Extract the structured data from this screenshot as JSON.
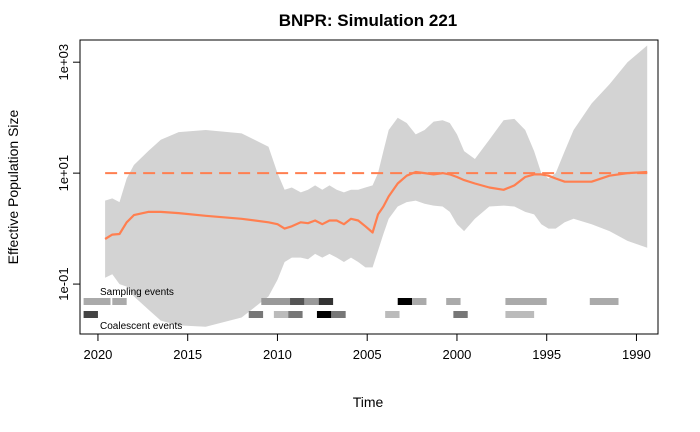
{
  "chart_data": {
    "type": "area",
    "title": "BNPR: Simulation 221",
    "xlabel": "Time",
    "ylabel": "Effective Population Size",
    "x_reversed": true,
    "y_scale": "log10",
    "xlim": [
      2021,
      1988.8
    ],
    "ylim_log10": [
      -1.9,
      3.4
    ],
    "x_ticks": [
      2020,
      2015,
      2010,
      2005,
      2000,
      1995,
      1990
    ],
    "y_ticks": [
      {
        "value": 0.1,
        "label": "1e-01"
      },
      {
        "value": 10,
        "label": "1e+01"
      },
      {
        "value": 1000,
        "label": "1e+03"
      }
    ],
    "reference_line": {
      "value": 10,
      "style": "dashed",
      "color": "#ff7f50"
    },
    "series": [
      {
        "kind": "median",
        "color": "#ff7f50",
        "x": [
          2019.6,
          2019.2,
          2018.8,
          2018.4,
          2018,
          2017.2,
          2016.5,
          2015.5,
          2014,
          2012,
          2010.5,
          2010,
          2009.6,
          2009.2,
          2008.7,
          2008.3,
          2007.9,
          2007.5,
          2007.1,
          2006.7,
          2006.3,
          2005.9,
          2005.5,
          2005.1,
          2004.7,
          2004.4,
          2004.1,
          2003.8,
          2003.3,
          2002.8,
          2002.3,
          2001.8,
          2001.3,
          2000.8,
          2000.4,
          2000,
          1999.6,
          1999,
          1998.2,
          1997.4,
          1996.8,
          1996.2,
          1995.7,
          1995.3,
          1994.9,
          1994.5,
          1994,
          1993.5,
          1992.5,
          1991.5,
          1990.5,
          1989.4
        ],
        "y": [
          0.65,
          0.78,
          0.8,
          1.3,
          1.75,
          2.0,
          2.0,
          1.9,
          1.7,
          1.5,
          1.3,
          1.2,
          1.0,
          1.1,
          1.3,
          1.25,
          1.4,
          1.2,
          1.4,
          1.4,
          1.2,
          1.5,
          1.4,
          1.1,
          0.85,
          1.8,
          2.5,
          3.8,
          6.5,
          9.0,
          10.5,
          10.0,
          9.5,
          10.0,
          9.5,
          8.5,
          7.5,
          6.5,
          5.5,
          5.0,
          6.0,
          8.5,
          9.5,
          9.5,
          9.0,
          8.0,
          7.0,
          7.0,
          7.0,
          9.0,
          10.0,
          10.5
        ]
      },
      {
        "kind": "credible-band-upper",
        "color": "#d3d3d3",
        "x": [
          2019.6,
          2019.2,
          2018.8,
          2018.4,
          2018,
          2017.2,
          2016.5,
          2015.5,
          2014,
          2012,
          2010.5,
          2010,
          2009.6,
          2009.2,
          2008.7,
          2008.3,
          2007.9,
          2007.5,
          2007.1,
          2006.7,
          2006.3,
          2005.9,
          2005.5,
          2005.1,
          2004.7,
          2004.4,
          2004.1,
          2003.8,
          2003.3,
          2002.8,
          2002.3,
          2001.8,
          2001.3,
          2000.8,
          2000.4,
          2000,
          1999.6,
          1999,
          1998.2,
          1997.4,
          1996.8,
          1996.2,
          1995.7,
          1995.3,
          1994.9,
          1994.5,
          1994,
          1993.5,
          1992.5,
          1991.5,
          1990.5,
          1989.4
        ],
        "y": [
          3.2,
          3.5,
          3.0,
          8.0,
          14.0,
          25.0,
          40.0,
          55.0,
          60.0,
          52.0,
          30.0,
          10.0,
          5.0,
          5.5,
          4.5,
          5.0,
          6.0,
          5.0,
          6.0,
          5.0,
          4.5,
          5.0,
          5.0,
          5.5,
          6.0,
          10.0,
          25.0,
          60.0,
          100.0,
          80.0,
          50.0,
          60.0,
          85.0,
          90.0,
          80.0,
          50.0,
          25.0,
          18.0,
          40.0,
          90.0,
          95.0,
          60.0,
          25.0,
          10.0,
          8.0,
          10.0,
          25.0,
          60.0,
          180.0,
          400.0,
          1000.0,
          2000.0
        ]
      },
      {
        "kind": "credible-band-lower",
        "color": "#d3d3d3",
        "x": [
          2019.6,
          2019.2,
          2018.8,
          2018.4,
          2018,
          2017.2,
          2016.5,
          2015.5,
          2014,
          2012,
          2010.5,
          2010,
          2009.6,
          2009.2,
          2008.7,
          2008.3,
          2007.9,
          2007.5,
          2007.1,
          2006.7,
          2006.3,
          2005.9,
          2005.5,
          2005.1,
          2004.7,
          2004.4,
          2004.1,
          2003.8,
          2003.3,
          2002.8,
          2002.3,
          2001.8,
          2001.3,
          2000.8,
          2000.4,
          2000,
          1999.6,
          1999,
          1998.2,
          1997.4,
          1996.8,
          1996.2,
          1995.7,
          1995.3,
          1994.9,
          1994.5,
          1994,
          1993.5,
          1992.5,
          1991.5,
          1990.5,
          1989.4
        ],
        "y": [
          0.13,
          0.15,
          0.1,
          0.09,
          0.06,
          0.035,
          0.022,
          0.018,
          0.017,
          0.025,
          0.06,
          0.12,
          0.25,
          0.3,
          0.3,
          0.28,
          0.35,
          0.3,
          0.35,
          0.3,
          0.25,
          0.3,
          0.25,
          0.2,
          0.2,
          0.4,
          0.8,
          1.5,
          2.5,
          3.0,
          3.2,
          2.8,
          2.6,
          2.5,
          2.0,
          1.2,
          0.9,
          1.5,
          2.5,
          2.6,
          2.5,
          2.0,
          1.8,
          1.2,
          1.0,
          1.0,
          1.3,
          1.5,
          1.2,
          0.9,
          0.6,
          0.45
        ]
      }
    ],
    "event_strips": [
      {
        "label": "Sampling events",
        "blocks": [
          {
            "from": 2020.8,
            "to": 2019.3,
            "shade": "#aaaaaa"
          },
          {
            "from": 2019.2,
            "to": 2018.4,
            "shade": "#aaaaaa"
          },
          {
            "from": 2010.9,
            "to": 2009.3,
            "shade": "#999999"
          },
          {
            "from": 2009.3,
            "to": 2008.5,
            "shade": "#555555"
          },
          {
            "from": 2008.5,
            "to": 2007.7,
            "shade": "#999999"
          },
          {
            "from": 2007.7,
            "to": 2006.9,
            "shade": "#333333"
          },
          {
            "from": 2003.3,
            "to": 2002.5,
            "shade": "#000000"
          },
          {
            "from": 2002.5,
            "to": 2001.7,
            "shade": "#aaaaaa"
          },
          {
            "from": 2000.6,
            "to": 1999.8,
            "shade": "#aaaaaa"
          },
          {
            "from": 1997.3,
            "to": 1995,
            "shade": "#aaaaaa"
          },
          {
            "from": 1992.6,
            "to": 1991,
            "shade": "#aaaaaa"
          }
        ]
      },
      {
        "label": "Coalescent events",
        "blocks": [
          {
            "from": 2020.8,
            "to": 2020,
            "shade": "#444444"
          },
          {
            "from": 2011.6,
            "to": 2010.8,
            "shade": "#777777"
          },
          {
            "from": 2010.2,
            "to": 2009.4,
            "shade": "#bbbbbb"
          },
          {
            "from": 2009.4,
            "to": 2008.6,
            "shade": "#777777"
          },
          {
            "from": 2007.8,
            "to": 2007,
            "shade": "#000000"
          },
          {
            "from": 2007,
            "to": 2006.2,
            "shade": "#777777"
          },
          {
            "from": 2004,
            "to": 2003.2,
            "shade": "#bbbbbb"
          },
          {
            "from": 2000.2,
            "to": 1999.4,
            "shade": "#777777"
          },
          {
            "from": 1997.3,
            "to": 1995.7,
            "shade": "#bbbbbb"
          }
        ]
      }
    ],
    "grid": false,
    "legend": "none"
  }
}
